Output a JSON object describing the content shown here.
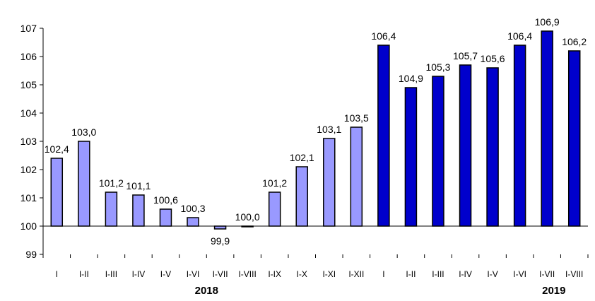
{
  "chart_data": {
    "type": "bar",
    "title": "",
    "xlabel": "",
    "ylabel": "",
    "ylim": [
      99,
      107
    ],
    "yticks": [
      99,
      100,
      101,
      102,
      103,
      104,
      105,
      106,
      107
    ],
    "baseline": 100,
    "categories": [
      "I",
      "I-II",
      "I-III",
      "I-IV",
      "I-V",
      "I-VI",
      "I-VII",
      "I-VIII",
      "I-IX",
      "I-X",
      "I-XI",
      "I-XII",
      "I",
      "I-II",
      "I-III",
      "I-IV",
      "I-V",
      "I-VI",
      "I-VII",
      "I-VIII"
    ],
    "values": [
      102.4,
      103.0,
      101.2,
      101.1,
      100.6,
      100.3,
      99.9,
      100.0,
      101.2,
      102.1,
      103.1,
      103.5,
      106.4,
      104.9,
      105.3,
      105.7,
      105.6,
      106.4,
      106.9,
      106.2
    ],
    "labels": [
      "102,4",
      "103,0",
      "101,2",
      "101,1",
      "100,6",
      "100,3",
      "99,9",
      "100,0",
      "101,2",
      "102,1",
      "103,1",
      "103,5",
      "106,4",
      "104,9",
      "105,3",
      "105,7",
      "105,6",
      "106,4",
      "106,9",
      "106,2"
    ],
    "groups": [
      {
        "year": "2018",
        "start": 0,
        "end": 11,
        "color": "#9999FF"
      },
      {
        "year": "2019",
        "start": 12,
        "end": 19,
        "color": "#0000CC"
      }
    ],
    "legend": "none",
    "grid": false
  }
}
